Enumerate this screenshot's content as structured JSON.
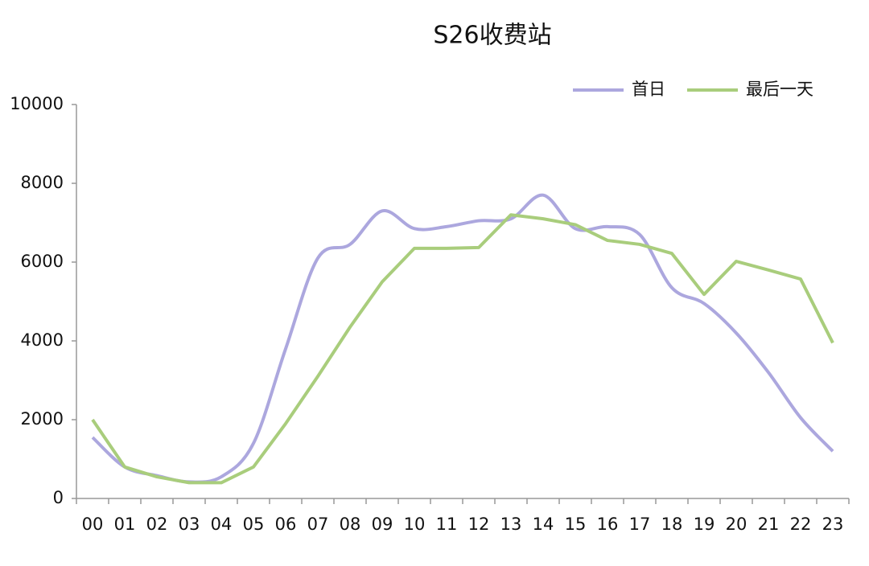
{
  "chart_data": {
    "type": "line",
    "title": "S26收费站",
    "categories": [
      "00",
      "01",
      "02",
      "03",
      "04",
      "05",
      "06",
      "07",
      "08",
      "09",
      "10",
      "11",
      "12",
      "13",
      "14",
      "15",
      "16",
      "17",
      "18",
      "19",
      "20",
      "21",
      "22",
      "23"
    ],
    "series": [
      {
        "name": "首日",
        "color": "#aca7de",
        "smooth": true,
        "values": [
          1550,
          800,
          580,
          420,
          550,
          1400,
          3800,
          6100,
          6450,
          7300,
          6850,
          6900,
          7050,
          7100,
          7700,
          6850,
          6900,
          6700,
          5350,
          4950,
          4200,
          3200,
          2050,
          1200
        ]
      },
      {
        "name": "最后一天",
        "color": "#a9cd7c",
        "smooth": false,
        "values": [
          2000,
          800,
          550,
          400,
          400,
          800,
          1900,
          3100,
          4350,
          5500,
          6350,
          6350,
          6370,
          7200,
          7100,
          6950,
          6550,
          6450,
          6220,
          5180,
          6020,
          5800,
          5570,
          3950
        ]
      }
    ],
    "ylim": [
      0,
      10000
    ],
    "yticks": [
      0,
      2000,
      4000,
      6000,
      8000,
      10000
    ],
    "grid": false,
    "legend": "top-right"
  }
}
